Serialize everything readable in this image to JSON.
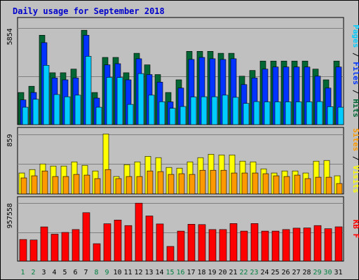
{
  "chart_data": {
    "type": "bar",
    "title": "Daily usage for September 2018",
    "colors": {
      "hits": "#006633",
      "files": "#0033ff",
      "pages": "#00ccff",
      "visits": "#ffff00",
      "sites": "#ff9900",
      "kbytes": "#ff0000",
      "weekend_day": "#008040",
      "weekday": "#000000",
      "slash": "#000000",
      "title": "#0000cc",
      "background": "#c0c0c0"
    },
    "days": [
      "1",
      "2",
      "3",
      "4",
      "5",
      "6",
      "7",
      "8",
      "9",
      "10",
      "11",
      "12",
      "13",
      "14",
      "15",
      "16",
      "17",
      "18",
      "19",
      "20",
      "21",
      "22",
      "23",
      "24",
      "25",
      "26",
      "27",
      "28",
      "29",
      "30",
      "31"
    ],
    "weekend_days": [
      "1",
      "2",
      "8",
      "9",
      "15",
      "16",
      "22",
      "23",
      "29",
      "30"
    ],
    "panels": [
      {
        "id": "top",
        "ymax": 5854,
        "ymax_label": "5854",
        "right_label": [
          {
            "text": "Pages",
            "color": "#00ccff"
          },
          {
            "text": " / ",
            "color": "#000000"
          },
          {
            "text": "Files",
            "color": "#0033ff"
          },
          {
            "text": " / ",
            "color": "#000000"
          },
          {
            "text": "Hits",
            "color": "#006633"
          }
        ],
        "series": [
          {
            "name": "Hits",
            "color": "#006633",
            "values": [
              1950,
              2330,
              5430,
              3150,
              3150,
              3370,
              5730,
              1950,
              4080,
              4080,
              3150,
              4330,
              3630,
              3040,
              1950,
              2720,
              4450,
              4450,
              4450,
              4330,
              4330,
              2940,
              3290,
              3860,
              3860,
              3860,
              3860,
              3860,
              3370,
              2720,
              3860
            ]
          },
          {
            "name": "Files",
            "color": "#0033ff",
            "values": [
              1500,
              1950,
              4980,
              2830,
              2720,
              2830,
              5430,
              1610,
              3630,
              3700,
              2720,
              4000,
              3040,
              2580,
              1380,
              2220,
              3960,
              4080,
              4000,
              3960,
              4000,
              2430,
              2830,
              3370,
              3500,
              3500,
              3500,
              3500,
              2940,
              2220,
              3500
            ]
          },
          {
            "name": "Pages",
            "color": "#00ccff",
            "values": [
              1060,
              1540,
              3600,
              1830,
              1690,
              1790,
              4150,
              1060,
              2870,
              2860,
              1230,
              3100,
              1790,
              1390,
              990,
              1100,
              1680,
              1690,
              1690,
              1790,
              1660,
              1290,
              1400,
              1380,
              1380,
              1380,
              1380,
              1380,
              1400,
              1090,
              1060
            ]
          }
        ]
      },
      {
        "id": "middle",
        "ymax": 859,
        "ymax_label": "859",
        "right_label": [
          {
            "text": "Sites",
            "color": "#ff9900"
          },
          {
            "text": " / ",
            "color": "#000000"
          },
          {
            "text": "Visits",
            "color": "#ffff00"
          }
        ],
        "series": [
          {
            "name": "Visits",
            "color": "#ffff00",
            "values": [
              300,
              350,
              430,
              400,
              400,
              460,
              410,
              330,
              860,
              250,
              420,
              460,
              540,
              520,
              380,
              370,
              460,
              520,
              570,
              560,
              560,
              470,
              460,
              360,
              300,
              330,
              330,
              300,
              470,
              480,
              260
            ]
          },
          {
            "name": "Sites",
            "color": "#ff9900",
            "values": [
              230,
              260,
              330,
              250,
              250,
              280,
              270,
              220,
              350,
              220,
              250,
              250,
              330,
              320,
              280,
              290,
              280,
              340,
              340,
              340,
              300,
              300,
              300,
              290,
              260,
              250,
              270,
              220,
              240,
              240,
              150
            ]
          }
        ]
      },
      {
        "id": "bottom",
        "ymax": 957558,
        "ymax_label": "957558",
        "right_label": [
          {
            "text": "KB F",
            "color": "#ff0000"
          }
        ],
        "series": [
          {
            "name": "KB F",
            "color": "#ff0000",
            "values": [
              357000,
              349000,
              565000,
              445000,
              474000,
              521000,
              800000,
              288000,
              618000,
              679000,
              587000,
              957558,
              746000,
              614000,
              243000,
              496000,
              609000,
              604000,
              521000,
              521000,
              621000,
              496000,
              621000,
              496000,
              496000,
              521000,
              545000,
              548000,
              587000,
              535000,
              567000
            ]
          }
        ]
      }
    ]
  }
}
